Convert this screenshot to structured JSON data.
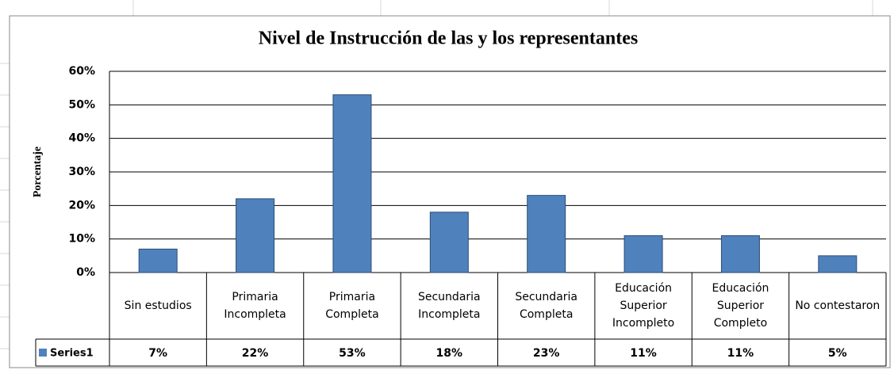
{
  "chart_data": {
    "type": "bar",
    "title": "Nivel de Instrucción de las y los representantes",
    "y_label": "Porcentaje",
    "categories": [
      "Sin estudios",
      "Primaria Incompleta",
      "Primaria Completa",
      "Secundaria Incompleta",
      "Secundaria Completa",
      "Educación Superior Incompleto",
      "Educación Superior Completo",
      "No contestaron"
    ],
    "series": [
      {
        "name": "Series1",
        "color": "#4f81bd",
        "values": [
          7,
          22,
          53,
          18,
          23,
          11,
          11,
          5
        ],
        "value_labels": [
          "7%",
          "22%",
          "53%",
          "18%",
          "23%",
          "11%",
          "11%",
          "5%"
        ]
      }
    ],
    "ylim": [
      0,
      60
    ],
    "yticks": [
      {
        "value": 0,
        "label": "0%"
      },
      {
        "value": 10,
        "label": "10%"
      },
      {
        "value": 20,
        "label": "20%"
      },
      {
        "value": 30,
        "label": "30%"
      },
      {
        "value": 40,
        "label": "40%"
      },
      {
        "value": 50,
        "label": "50%"
      },
      {
        "value": 60,
        "label": "60%"
      }
    ],
    "grid": true
  }
}
